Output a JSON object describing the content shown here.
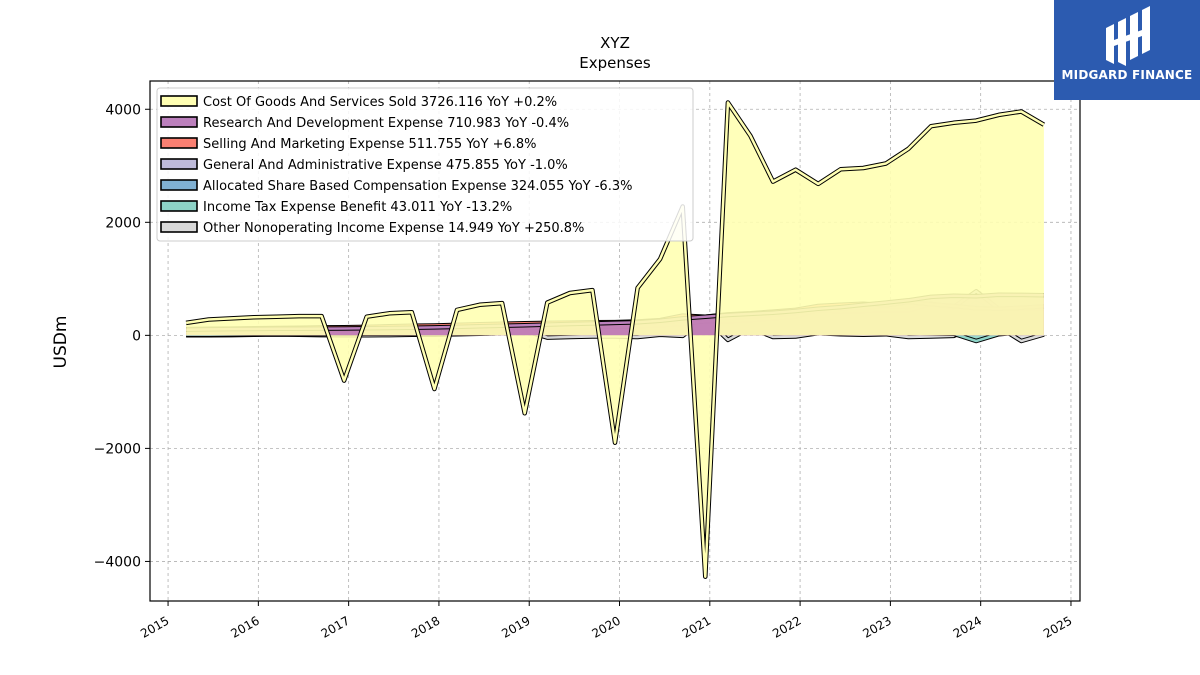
{
  "logo": {
    "text": "MIDGARD FINANCE"
  },
  "chart_data": {
    "type": "area",
    "title": "XYZ",
    "subtitle": "Expenses",
    "ylabel": "USDm",
    "xlabel": "",
    "xlim": [
      2014.8,
      2025.1
    ],
    "ylim": [
      -4700,
      4500
    ],
    "yticks": [
      -4000,
      -2000,
      0,
      2000,
      4000
    ],
    "ytick_labels": [
      "−4000",
      "−2000",
      "0",
      "2000",
      "4000"
    ],
    "xticks": [
      2015,
      2016,
      2017,
      2018,
      2019,
      2020,
      2021,
      2022,
      2023,
      2024,
      2025
    ],
    "xtick_labels": [
      "2015",
      "2016",
      "2017",
      "2018",
      "2019",
      "2020",
      "2021",
      "2022",
      "2023",
      "2024",
      "2025"
    ],
    "grid": true,
    "legend_position": "top-left",
    "x": [
      2015.2,
      2015.45,
      2015.7,
      2015.95,
      2016.2,
      2016.45,
      2016.7,
      2016.95,
      2017.2,
      2017.45,
      2017.7,
      2017.95,
      2018.2,
      2018.45,
      2018.7,
      2018.95,
      2019.2,
      2019.45,
      2019.7,
      2019.95,
      2020.2,
      2020.45,
      2020.7,
      2020.95,
      2021.2,
      2021.45,
      2021.7,
      2021.95,
      2022.2,
      2022.45,
      2022.7,
      2022.95,
      2023.2,
      2023.45,
      2023.7,
      2023.95,
      2024.2,
      2024.45,
      2024.7
    ],
    "series": [
      {
        "name": "Cost Of Goods And Services Sold",
        "legend_label": "Cost Of Goods And Services Sold  3726.116 YoY +0.2%",
        "color": "#ffffb3",
        "values": [
          220,
          280,
          300,
          320,
          330,
          340,
          340,
          -800,
          330,
          390,
          410,
          -950,
          450,
          540,
          570,
          -1380,
          580,
          750,
          800,
          -1900,
          840,
          1350,
          2280,
          -4270,
          4120,
          3530,
          2720,
          2930,
          2680,
          2940,
          2960,
          3040,
          3300,
          3700,
          3760,
          3800,
          3900,
          3960,
          3726
        ]
      },
      {
        "name": "Research And Development Expense",
        "legend_label": "Research And Development Expense  710.983 YoY -0.4%",
        "color": "#bc80bd",
        "values": [
          100,
          105,
          110,
          112,
          115,
          118,
          120,
          122,
          125,
          130,
          135,
          140,
          150,
          160,
          170,
          180,
          190,
          200,
          210,
          220,
          230,
          260,
          300,
          330,
          360,
          380,
          400,
          430,
          470,
          500,
          540,
          580,
          620,
          680,
          700,
          690,
          720,
          715,
          711
        ]
      },
      {
        "name": "Selling And Marketing Expense",
        "legend_label": "Selling And Marketing Expense  511.755 YoY +6.8%",
        "color": "#fb8072",
        "values": [
          110,
          115,
          120,
          125,
          130,
          135,
          140,
          145,
          150,
          160,
          170,
          175,
          185,
          195,
          205,
          215,
          220,
          225,
          230,
          235,
          245,
          270,
          350,
          330,
          370,
          390,
          420,
          450,
          520,
          540,
          560,
          530,
          590,
          550,
          520,
          480,
          470,
          490,
          512
        ]
      },
      {
        "name": "General And Administrative Expense",
        "legend_label": "General And Administrative Expense  475.855 YoY -1.0%",
        "color": "#bebada",
        "values": [
          60,
          65,
          70,
          75,
          80,
          85,
          90,
          95,
          100,
          105,
          110,
          115,
          120,
          125,
          130,
          135,
          140,
          145,
          150,
          155,
          160,
          180,
          200,
          250,
          250,
          270,
          300,
          330,
          450,
          420,
          430,
          450,
          440,
          560,
          500,
          780,
          470,
          480,
          476
        ]
      },
      {
        "name": "Allocated Share Based Compensation Expense",
        "legend_label": "Allocated Share Based Compensation Expense  324.055 YoY -6.3%",
        "color": "#80b1d3",
        "values": [
          40,
          42,
          44,
          46,
          48,
          50,
          52,
          55,
          58,
          60,
          62,
          65,
          68,
          70,
          72,
          75,
          78,
          80,
          82,
          85,
          88,
          95,
          110,
          150,
          160,
          180,
          190,
          200,
          280,
          260,
          270,
          280,
          290,
          320,
          320,
          580,
          340,
          345,
          324
        ]
      },
      {
        "name": "Income Tax Expense Benefit",
        "legend_label": "Income Tax Expense Benefit  43.011 YoY -13.2%",
        "color": "#8dd3c7",
        "values": [
          10,
          12,
          15,
          18,
          20,
          20,
          22,
          25,
          28,
          30,
          30,
          32,
          35,
          38,
          40,
          42,
          45,
          48,
          50,
          52,
          55,
          60,
          70,
          80,
          60,
          50,
          60,
          70,
          60,
          55,
          50,
          45,
          40,
          35,
          30,
          -100,
          20,
          55,
          43
        ]
      },
      {
        "name": "Other Nonoperating Income Expense",
        "legend_label": "Other Nonoperating Income Expense  14.949 YoY +250.8%",
        "color": "#d9d9d9",
        "values": [
          0,
          0,
          5,
          10,
          15,
          10,
          5,
          0,
          0,
          5,
          10,
          10,
          20,
          30,
          40,
          80,
          -40,
          -30,
          -20,
          -20,
          -30,
          10,
          -10,
          300,
          -80,
          130,
          -30,
          -20,
          40,
          20,
          10,
          20,
          -30,
          -20,
          -10,
          160,
          150,
          -100,
          15
        ]
      }
    ]
  }
}
